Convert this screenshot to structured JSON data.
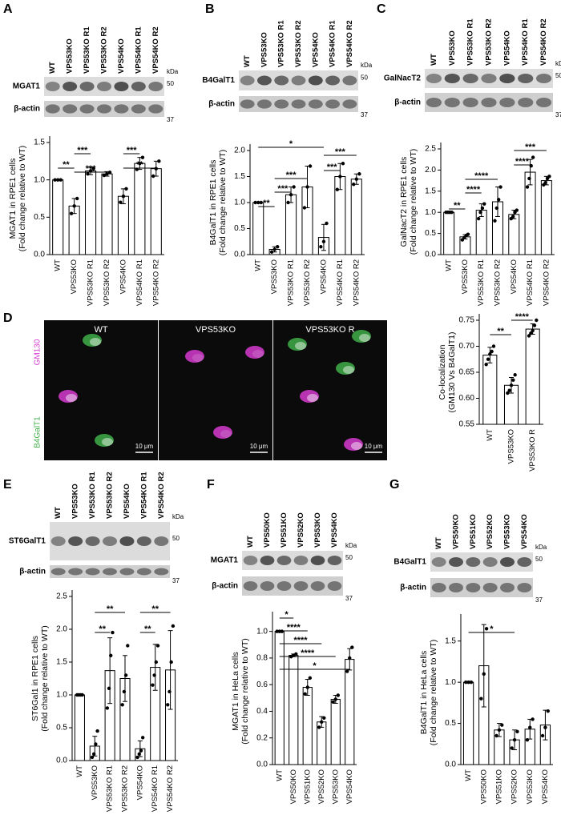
{
  "chart_data": [
    {
      "type": "bar",
      "panel": "A",
      "blot": {
        "lanes": [
          "WT",
          "VPS53KO",
          "VPS53KO R1",
          "VPS53KO R2",
          "VPS54KO",
          "VPS54KO R1",
          "VPS54KO R2"
        ],
        "bands": [
          "MGAT1",
          "β-actin"
        ],
        "unit": "kDa",
        "markers": [
          50,
          37
        ]
      },
      "ylabel": [
        "MGAT1 in RPE1 cells",
        "(Fold change relative to WT)"
      ],
      "categories": [
        "WT",
        "VPS53KO",
        "VPS53KO R1",
        "VPS53KO R2",
        "VPS54KO",
        "VPS54KO R1",
        "VPS54KO R2"
      ],
      "values": [
        1.0,
        0.65,
        1.12,
        1.08,
        0.78,
        1.22,
        1.15
      ],
      "errors": [
        0,
        0.1,
        0.05,
        0.03,
        0.1,
        0.08,
        0.1
      ],
      "points": [
        [
          1,
          1,
          1
        ],
        [
          0.55,
          0.65,
          0.75
        ],
        [
          1.08,
          1.12,
          1.15
        ],
        [
          1.06,
          1.08,
          1.1
        ],
        [
          0.7,
          0.78,
          0.88
        ],
        [
          1.14,
          1.22,
          1.3
        ],
        [
          1.05,
          1.15,
          1.25
        ]
      ],
      "color": "#ffffff",
      "ylim": [
        0,
        1.5
      ],
      "yticks": [
        {
          "value": 0,
          "label": "0.0"
        },
        0.5,
        {
          "value": 1,
          "label": "1.0"
        },
        1.5
      ],
      "significance": [
        {
          "label": "**",
          "between": [
            "WT",
            "VPS53KO"
          ]
        },
        {
          "label": "***",
          "between": [
            "VPS53KO",
            "VPS53KO R1"
          ]
        },
        {
          "label": "***",
          "between": [
            "VPS53KO",
            "VPS53KO R2"
          ]
        },
        {
          "label": "***",
          "between": [
            "VPS54KO",
            "VPS54KO R1"
          ]
        },
        {
          "label": "**",
          "between": [
            "VPS54KO",
            "VPS54KO R2"
          ]
        }
      ]
    },
    {
      "type": "bar",
      "panel": "B",
      "blot": {
        "lanes": [
          "WT",
          "VPS53KO",
          "VPS53KO R1",
          "VPS53KO R2",
          "VPS54KO",
          "VPS54KO R1",
          "VPS54KO R2"
        ],
        "bands": [
          "B4GalT1",
          "β-actin"
        ],
        "unit": "kDa",
        "markers": [
          50,
          37
        ]
      },
      "ylabel": [
        "B4GalT1 in RPE1 cells",
        "(Fold change relative to WT)"
      ],
      "categories": [
        "WT",
        "VPS53KO",
        "VPS53KO R1",
        "VPS53KO R2",
        "VPS54KO",
        "VPS54KO R1",
        "VPS54KO R2"
      ],
      "values": [
        1.0,
        0.1,
        1.15,
        1.3,
        0.33,
        1.5,
        1.45
      ],
      "errors": [
        0,
        0.05,
        0.15,
        0.4,
        0.25,
        0.25,
        0.1
      ],
      "points": [
        [
          1,
          1,
          1
        ],
        [
          0.05,
          0.1,
          0.15
        ],
        [
          1.0,
          1.15,
          1.3
        ],
        [
          0.9,
          1.3,
          1.7
        ],
        [
          0.15,
          0.25,
          0.6
        ],
        [
          1.25,
          1.5,
          1.75
        ],
        [
          1.35,
          1.45,
          1.55
        ]
      ],
      "color": "#ffffff",
      "ylim": [
        0,
        2
      ],
      "yticks": [
        {
          "value": 0,
          "label": "0.0"
        },
        0.5,
        {
          "value": 1,
          "label": "1.0"
        },
        1.5,
        {
          "value": 2,
          "label": "2.0"
        }
      ],
      "significance": [
        {
          "label": "**",
          "between": [
            "WT",
            "VPS53KO"
          ]
        },
        {
          "label": "***",
          "between": [
            "VPS53KO",
            "VPS53KO R1"
          ]
        },
        {
          "label": "***",
          "between": [
            "VPS53KO",
            "VPS53KO R2"
          ]
        },
        {
          "label": "*",
          "between": [
            "WT",
            "VPS54KO"
          ]
        },
        {
          "label": "***",
          "between": [
            "VPS54KO",
            "VPS54KO R1"
          ]
        },
        {
          "label": "***",
          "between": [
            "VPS54KO",
            "VPS54KO R2"
          ]
        }
      ]
    },
    {
      "type": "bar",
      "panel": "C",
      "blot": {
        "lanes": [
          "WT",
          "VPS53KO",
          "VPS53KO R1",
          "VPS53KO R2",
          "VPS54KO",
          "VPS54KO R1",
          "VPS54KO R2"
        ],
        "bands": [
          "GalNacT2",
          "β-actin"
        ],
        "unit": "kDa",
        "markers": [
          50,
          37
        ]
      },
      "ylabel": [
        "GalNacT2 in RPE1 cells",
        "(Fold change relative to WT)"
      ],
      "categories": [
        "WT",
        "VPS53KO",
        "VPS53KO R1",
        "VPS53KO R2",
        "VPS54KO",
        "VPS54KO R1",
        "VPS54KO R2"
      ],
      "values": [
        1.0,
        0.42,
        1.05,
        1.25,
        0.95,
        1.95,
        1.75
      ],
      "errors": [
        0,
        0.05,
        0.15,
        0.35,
        0.1,
        0.3,
        0.1
      ],
      "points": [
        [
          1,
          1,
          1,
          1
        ],
        [
          0.35,
          0.4,
          0.45,
          0.48
        ],
        [
          0.85,
          1.0,
          1.1,
          1.2
        ],
        [
          0.8,
          1.1,
          1.3,
          1.6
        ],
        [
          0.85,
          0.9,
          1.0,
          1.05
        ],
        [
          1.6,
          1.8,
          2.1,
          2.3
        ],
        [
          1.65,
          1.7,
          1.8,
          1.85
        ]
      ],
      "color": "#ffffff",
      "ylim": [
        0,
        2.5
      ],
      "yticks": [
        {
          "value": 0,
          "label": "0.0"
        },
        0.5,
        {
          "value": 1,
          "label": "1.0"
        },
        1.5,
        {
          "value": 2,
          "label": "2.0"
        },
        2.5
      ],
      "significance": [
        {
          "label": "**",
          "between": [
            "WT",
            "VPS53KO"
          ]
        },
        {
          "label": "****",
          "between": [
            "VPS53KO",
            "VPS53KO R1"
          ]
        },
        {
          "label": "****",
          "between": [
            "VPS53KO",
            "VPS53KO R2"
          ]
        },
        {
          "label": "****",
          "between": [
            "VPS54KO",
            "VPS54KO R1"
          ]
        },
        {
          "label": "***",
          "between": [
            "VPS54KO",
            "VPS54KO R2"
          ]
        }
      ]
    },
    {
      "type": "bar",
      "panel": "D",
      "images": {
        "labels": [
          "WT",
          "VPS53KO",
          "VPS53KO R"
        ],
        "channels": [
          {
            "name": "GM130",
            "color": "#d63bd0"
          },
          {
            "name": "B4GalT1",
            "color": "#3fae49"
          }
        ],
        "scale_bar": "10 μm"
      },
      "ylabel": [
        "Co-localization",
        "(GM130 Vs B4GalT1)"
      ],
      "categories": [
        "WT",
        "VPS53KO",
        "VPS53KO R"
      ],
      "values": [
        0.683,
        0.625,
        0.733
      ],
      "errors": [
        0.015,
        0.015,
        0.01
      ],
      "points": [
        [
          0.665,
          0.675,
          0.685,
          0.69,
          0.7
        ],
        [
          0.61,
          0.615,
          0.625,
          0.635,
          0.645
        ],
        [
          0.72,
          0.725,
          0.73,
          0.74,
          0.75
        ]
      ],
      "color": "#ffffff",
      "ylim": [
        0.55,
        0.75
      ],
      "yticks": [
        0.55,
        {
          "value": 0.6,
          "label": "0.60"
        },
        0.65,
        {
          "value": 0.7,
          "label": "0.70"
        },
        0.75
      ],
      "significance": [
        {
          "label": "**",
          "between": [
            "WT",
            "VPS53KO"
          ]
        },
        {
          "label": "****",
          "between": [
            "VPS53KO",
            "VPS53KO R"
          ]
        }
      ]
    },
    {
      "type": "bar",
      "panel": "E",
      "blot": {
        "lanes": [
          "WT",
          "VPS53KO",
          "VPS53KO R1",
          "VPS53KO R2",
          "VPS54KO",
          "VPS54KO R1",
          "VPS54KO R2"
        ],
        "bands": [
          "ST6GalT1",
          "β-actin"
        ],
        "unit": "kDa",
        "markers": [
          50,
          37
        ]
      },
      "ylabel": [
        "ST6Gal1 in RPE1 cells",
        "(Fold change relative to WT)"
      ],
      "categories": [
        "WT",
        "VPS53KO",
        "VPS53KO R1",
        "VPS53KO R2",
        "VPS54KO",
        "VPS54KO R1",
        "VPS54KO R2"
      ],
      "values": [
        1.0,
        0.22,
        1.37,
        1.25,
        0.18,
        1.42,
        1.38
      ],
      "errors": [
        0,
        0.15,
        0.5,
        0.35,
        0.12,
        0.35,
        0.6
      ],
      "points": [
        [
          1,
          1,
          1,
          1
        ],
        [
          0.05,
          0.1,
          0.25,
          0.45
        ],
        [
          0.8,
          1.1,
          1.6,
          1.95
        ],
        [
          0.85,
          1.05,
          1.3,
          1.75
        ],
        [
          0.05,
          0.1,
          0.15,
          0.35
        ],
        [
          1.15,
          1.3,
          1.5,
          1.75
        ],
        [
          0.85,
          1.05,
          1.5,
          2.05
        ]
      ],
      "color": "#ffffff",
      "ylim": [
        0,
        2.5
      ],
      "yticks": [
        {
          "value": 0,
          "label": "0.0"
        },
        0.5,
        {
          "value": 1,
          "label": "1.0"
        },
        1.5,
        {
          "value": 2,
          "label": "2.0"
        },
        2.5
      ],
      "significance": [
        {
          "label": "**",
          "between": [
            "VPS53KO",
            "VPS53KO R1"
          ]
        },
        {
          "label": "**",
          "between": [
            "VPS53KO",
            "VPS53KO R2"
          ]
        },
        {
          "label": "**",
          "between": [
            "VPS54KO",
            "VPS54KO R1"
          ]
        },
        {
          "label": "**",
          "between": [
            "VPS54KO",
            "VPS54KO R2"
          ]
        }
      ]
    },
    {
      "type": "bar",
      "panel": "F",
      "blot": {
        "lanes": [
          "WT",
          "VPS50KO",
          "VPS51KO",
          "VPS52KO",
          "VPS53KO",
          "VPS54KO"
        ],
        "bands": [
          "MGAT1",
          "β-actin"
        ],
        "unit": "kDa",
        "markers": [
          50,
          37
        ]
      },
      "ylabel": [
        "MGAT1 in HeLa cells",
        "(Fold change relative to WT)"
      ],
      "categories": [
        "WT",
        "VPS50KO",
        "VPS51KO",
        "VPS52KO",
        "VPS53KO",
        "VPS54KO"
      ],
      "values": [
        1.0,
        0.82,
        0.58,
        0.32,
        0.49,
        0.79
      ],
      "errors": [
        0,
        0.01,
        0.06,
        0.04,
        0.03,
        0.08
      ],
      "points": [
        [
          1,
          1,
          1
        ],
        [
          0.81,
          0.82,
          0.83
        ],
        [
          0.53,
          0.58,
          0.65
        ],
        [
          0.28,
          0.32,
          0.35
        ],
        [
          0.47,
          0.49,
          0.52
        ],
        [
          0.7,
          0.8,
          0.88
        ]
      ],
      "color": "#ffffff",
      "ylim": [
        0,
        1.1
      ],
      "yticks": [
        {
          "value": 0,
          "label": "0.0"
        },
        0.2,
        0.4,
        0.6,
        0.8,
        {
          "value": 1,
          "label": "1.0"
        }
      ],
      "significance": [
        {
          "label": "*",
          "between": [
            "WT",
            "VPS50KO"
          ]
        },
        {
          "label": "****",
          "between": [
            "WT",
            "VPS51KO"
          ]
        },
        {
          "label": "****",
          "between": [
            "WT",
            "VPS52KO"
          ]
        },
        {
          "label": "****",
          "between": [
            "WT",
            "VPS53KO"
          ]
        },
        {
          "label": "*",
          "between": [
            "WT",
            "VPS54KO"
          ]
        }
      ]
    },
    {
      "type": "bar",
      "panel": "G",
      "blot": {
        "lanes": [
          "WT",
          "VPS50KO",
          "VPS51KO",
          "VPS52KO",
          "VPS53KO",
          "VPS54KO"
        ],
        "bands": [
          "B4GalT1",
          "β-actin"
        ],
        "unit": "kDa",
        "markers": [
          50,
          37
        ]
      },
      "ylabel": [
        "B4GalT1 in HeLa cells",
        "(Fold change relative to WT)"
      ],
      "categories": [
        "WT",
        "VPS50KO",
        "VPS51KO",
        "VPS52KO",
        "VPS53KO",
        "VPS54KO"
      ],
      "values": [
        1.0,
        1.2,
        0.42,
        0.3,
        0.43,
        0.48
      ],
      "errors": [
        0,
        0.5,
        0.08,
        0.12,
        0.12,
        0.18
      ],
      "points": [
        [
          1,
          1,
          1
        ],
        [
          0.8,
          1.1,
          1.65
        ],
        [
          0.35,
          0.42,
          0.48
        ],
        [
          0.2,
          0.3,
          0.4
        ],
        [
          0.3,
          0.45,
          0.55
        ],
        [
          0.35,
          0.45,
          0.65
        ]
      ],
      "color": "#ffffff",
      "ylim": [
        0,
        1.75
      ],
      "yticks": [
        {
          "value": 0,
          "label": "0.0"
        },
        0.5,
        {
          "value": 1,
          "label": "1.0"
        },
        1.5
      ],
      "significance": [
        {
          "label": "*",
          "between": [
            "WT",
            "VPS52KO"
          ]
        }
      ]
    }
  ]
}
